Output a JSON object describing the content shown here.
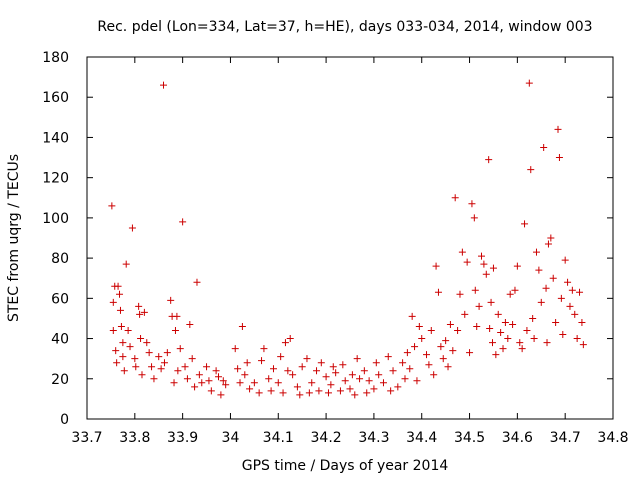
{
  "chart_data": {
    "type": "scatter",
    "title": "Rec. pdel (Lon=334, Lat=37, h=HE), days 033-034, 2014, window 003",
    "xlabel": "GPS time / Days of year 2014",
    "ylabel": "STEC from uqrg / TECUs",
    "xlim": [
      33.7,
      34.8
    ],
    "ylim": [
      0,
      180
    ],
    "xticks": [
      "33.7",
      "33.8",
      "33.9",
      "34",
      "34.1",
      "34.2",
      "34.3",
      "34.4",
      "34.5",
      "34.6",
      "34.7",
      "34.8"
    ],
    "yticks": [
      "0",
      "20",
      "40",
      "60",
      "80",
      "100",
      "120",
      "140",
      "160",
      "180"
    ],
    "grid": false,
    "marker": "plus",
    "color": "#cc0000",
    "series": [
      {
        "points": [
          [
            33.752,
            106
          ],
          [
            33.755,
            58
          ],
          [
            33.755,
            44
          ],
          [
            33.758,
            66
          ],
          [
            33.76,
            34
          ],
          [
            33.762,
            28
          ],
          [
            33.765,
            66
          ],
          [
            33.768,
            62
          ],
          [
            33.77,
            54
          ],
          [
            33.772,
            46
          ],
          [
            33.775,
            38
          ],
          [
            33.775,
            31
          ],
          [
            33.778,
            24
          ],
          [
            33.782,
            77
          ],
          [
            33.786,
            44
          ],
          [
            33.79,
            36
          ],
          [
            33.795,
            95
          ],
          [
            33.8,
            30
          ],
          [
            33.802,
            26
          ],
          [
            33.808,
            56
          ],
          [
            33.81,
            52
          ],
          [
            33.812,
            40
          ],
          [
            33.815,
            22
          ],
          [
            33.82,
            53
          ],
          [
            33.825,
            38
          ],
          [
            33.83,
            33
          ],
          [
            33.835,
            26
          ],
          [
            33.84,
            20
          ],
          [
            33.85,
            31
          ],
          [
            33.855,
            25
          ],
          [
            33.86,
            166
          ],
          [
            33.862,
            28
          ],
          [
            33.868,
            33
          ],
          [
            33.875,
            59
          ],
          [
            33.878,
            51
          ],
          [
            33.882,
            18
          ],
          [
            33.885,
            44
          ],
          [
            33.888,
            51
          ],
          [
            33.89,
            24
          ],
          [
            33.895,
            35
          ],
          [
            33.9,
            98
          ],
          [
            33.905,
            26
          ],
          [
            33.91,
            20
          ],
          [
            33.915,
            47
          ],
          [
            33.92,
            30
          ],
          [
            33.925,
            16
          ],
          [
            33.93,
            68
          ],
          [
            33.935,
            22
          ],
          [
            33.94,
            18
          ],
          [
            33.95,
            26
          ],
          [
            33.955,
            19
          ],
          [
            33.96,
            14
          ],
          [
            33.97,
            24
          ],
          [
            33.975,
            21
          ],
          [
            33.98,
            12
          ],
          [
            33.985,
            19
          ],
          [
            33.99,
            17
          ],
          [
            34.01,
            35
          ],
          [
            34.015,
            25
          ],
          [
            34.02,
            18
          ],
          [
            34.025,
            46
          ],
          [
            34.03,
            22
          ],
          [
            34.035,
            28
          ],
          [
            34.04,
            15
          ],
          [
            34.05,
            18
          ],
          [
            34.06,
            13
          ],
          [
            34.065,
            29
          ],
          [
            34.07,
            35
          ],
          [
            34.08,
            20
          ],
          [
            34.085,
            14
          ],
          [
            34.09,
            25
          ],
          [
            34.1,
            18
          ],
          [
            34.105,
            31
          ],
          [
            34.11,
            13
          ],
          [
            34.115,
            38
          ],
          [
            34.12,
            24
          ],
          [
            34.125,
            40
          ],
          [
            34.13,
            22
          ],
          [
            34.14,
            16
          ],
          [
            34.145,
            12
          ],
          [
            34.15,
            26
          ],
          [
            34.16,
            30
          ],
          [
            34.165,
            13
          ],
          [
            34.17,
            18
          ],
          [
            34.18,
            24
          ],
          [
            34.185,
            14
          ],
          [
            34.19,
            28
          ],
          [
            34.2,
            21
          ],
          [
            34.205,
            13
          ],
          [
            34.21,
            17
          ],
          [
            34.215,
            26
          ],
          [
            34.22,
            23
          ],
          [
            34.23,
            14
          ],
          [
            34.235,
            27
          ],
          [
            34.24,
            19
          ],
          [
            34.25,
            15
          ],
          [
            34.255,
            22
          ],
          [
            34.26,
            12
          ],
          [
            34.265,
            30
          ],
          [
            34.27,
            20
          ],
          [
            34.28,
            24
          ],
          [
            34.285,
            13
          ],
          [
            34.29,
            19
          ],
          [
            34.3,
            15
          ],
          [
            34.305,
            28
          ],
          [
            34.31,
            22
          ],
          [
            34.32,
            18
          ],
          [
            34.33,
            31
          ],
          [
            34.335,
            14
          ],
          [
            34.34,
            24
          ],
          [
            34.35,
            16
          ],
          [
            34.36,
            28
          ],
          [
            34.365,
            20
          ],
          [
            34.37,
            33
          ],
          [
            34.375,
            25
          ],
          [
            34.38,
            51
          ],
          [
            34.385,
            36
          ],
          [
            34.39,
            19
          ],
          [
            34.395,
            46
          ],
          [
            34.4,
            40
          ],
          [
            34.41,
            32
          ],
          [
            34.415,
            27
          ],
          [
            34.42,
            44
          ],
          [
            34.425,
            22
          ],
          [
            34.43,
            76
          ],
          [
            34.435,
            63
          ],
          [
            34.44,
            36
          ],
          [
            34.445,
            30
          ],
          [
            34.45,
            39
          ],
          [
            34.455,
            26
          ],
          [
            34.46,
            47
          ],
          [
            34.465,
            34
          ],
          [
            34.47,
            110
          ],
          [
            34.475,
            44
          ],
          [
            34.48,
            62
          ],
          [
            34.485,
            83
          ],
          [
            34.49,
            52
          ],
          [
            34.495,
            78
          ],
          [
            34.5,
            33
          ],
          [
            34.505,
            107
          ],
          [
            34.51,
            100
          ],
          [
            34.512,
            64
          ],
          [
            34.515,
            46
          ],
          [
            34.52,
            56
          ],
          [
            34.525,
            81
          ],
          [
            34.53,
            77
          ],
          [
            34.535,
            72
          ],
          [
            34.54,
            129
          ],
          [
            34.542,
            45
          ],
          [
            34.545,
            58
          ],
          [
            34.548,
            38
          ],
          [
            34.55,
            75
          ],
          [
            34.555,
            32
          ],
          [
            34.56,
            52
          ],
          [
            34.565,
            43
          ],
          [
            34.57,
            35
          ],
          [
            34.575,
            48
          ],
          [
            34.58,
            40
          ],
          [
            34.585,
            62
          ],
          [
            34.59,
            47
          ],
          [
            34.595,
            64
          ],
          [
            34.6,
            76
          ],
          [
            34.605,
            38
          ],
          [
            34.61,
            35
          ],
          [
            34.615,
            97
          ],
          [
            34.62,
            44
          ],
          [
            34.625,
            167
          ],
          [
            34.628,
            124
          ],
          [
            34.632,
            50
          ],
          [
            34.635,
            40
          ],
          [
            34.64,
            83
          ],
          [
            34.645,
            74
          ],
          [
            34.65,
            58
          ],
          [
            34.655,
            135
          ],
          [
            34.66,
            65
          ],
          [
            34.662,
            38
          ],
          [
            34.665,
            87
          ],
          [
            34.67,
            90
          ],
          [
            34.675,
            70
          ],
          [
            34.68,
            48
          ],
          [
            34.685,
            144
          ],
          [
            34.688,
            130
          ],
          [
            34.692,
            60
          ],
          [
            34.695,
            42
          ],
          [
            34.7,
            79
          ],
          [
            34.705,
            68
          ],
          [
            34.71,
            56
          ],
          [
            34.715,
            64
          ],
          [
            34.72,
            52
          ],
          [
            34.725,
            40
          ],
          [
            34.73,
            63
          ],
          [
            34.735,
            48
          ],
          [
            34.738,
            37
          ]
        ]
      }
    ]
  }
}
